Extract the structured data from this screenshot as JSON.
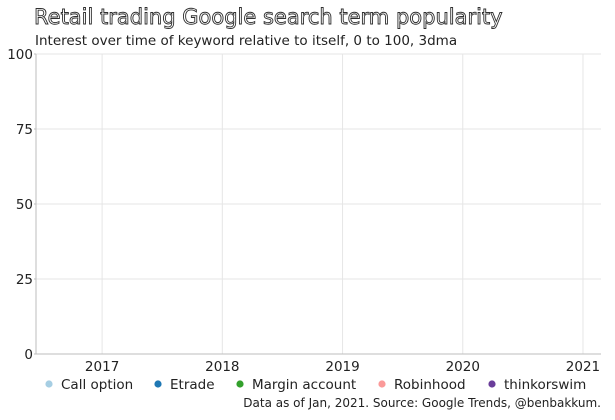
{
  "chart_data": {
    "type": "line",
    "title": "Retail trading Google search term popularity",
    "subtitle": "Interest over time of keyword relative to itself, 0 to 100, 3dma",
    "xlabel": "",
    "ylabel": "",
    "x_ticks": [
      "2017",
      "2018",
      "2019",
      "2020",
      "2021"
    ],
    "y_ticks": [
      0,
      25,
      50,
      75,
      100
    ],
    "xlim": [
      2016.45,
      2021.15
    ],
    "ylim": [
      0,
      100
    ],
    "grid": true,
    "legend_position": "bottom",
    "series": [
      {
        "name": "Call option",
        "color": "#a6cee3",
        "values": []
      },
      {
        "name": "Etrade",
        "color": "#1f78b4",
        "values": []
      },
      {
        "name": "Margin account",
        "color": "#33a02c",
        "values": []
      },
      {
        "name": "Robinhood",
        "color": "#fb9a99",
        "values": []
      },
      {
        "name": "thinkorswim",
        "color": "#6a3d9a",
        "values": []
      }
    ],
    "source": "Data as of Jan, 2021. Source: Google Trends, @benbakkum."
  }
}
